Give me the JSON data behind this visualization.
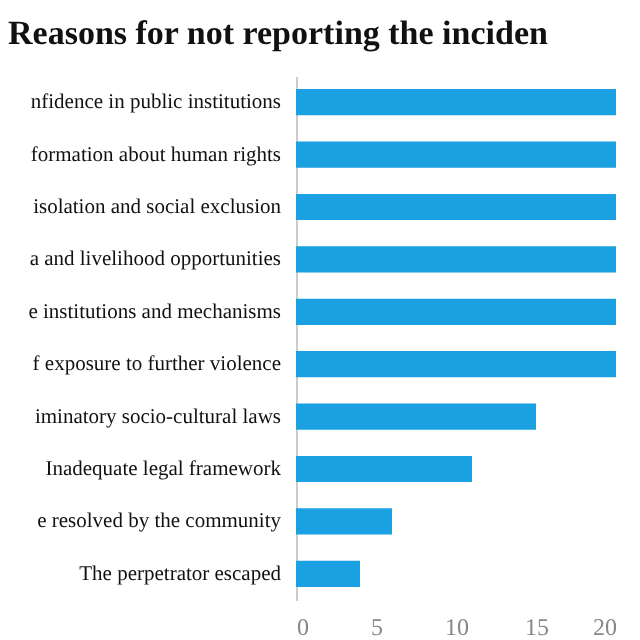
{
  "chart_data": {
    "type": "bar",
    "orientation": "horizontal",
    "title": "Reasons for not reporting the inciden",
    "categories": [
      "nfidence in public institutions",
      "formation about human rights",
      "isolation and social exclusion",
      "a and livelihood opportunities",
      "e institutions and mechanisms",
      "f exposure to further violence",
      "iminatory socio-cultural laws",
      "Inadequate legal framework",
      "e resolved by the community",
      "The perpetrator escaped"
    ],
    "values": [
      20,
      20,
      20,
      20,
      20,
      20,
      15,
      11,
      6,
      4
    ],
    "color": "#1ba1e2",
    "xlim": [
      0,
      20
    ],
    "xticks": [
      0,
      5,
      10,
      15,
      20
    ],
    "grid": false
  }
}
